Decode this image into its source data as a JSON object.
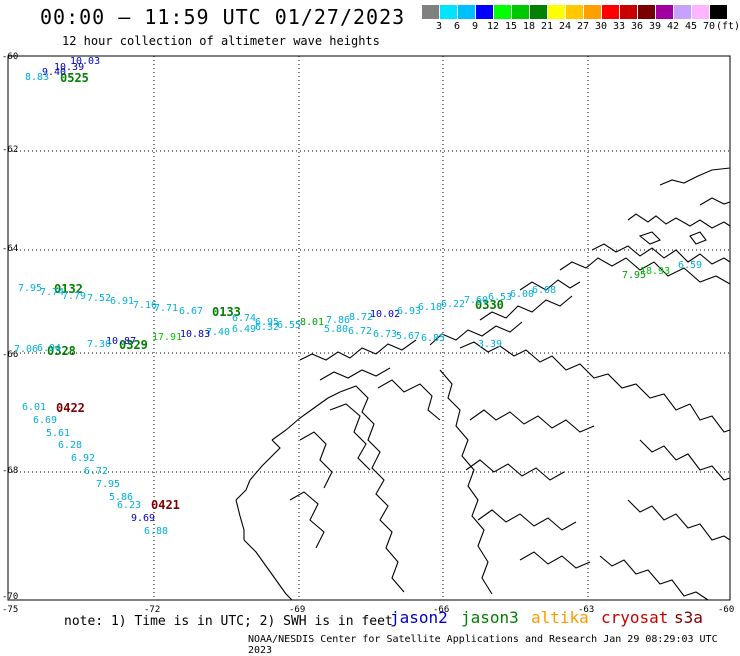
{
  "header": {
    "title": "00:00 – 11:59 UTC 01/27/2023",
    "subtitle": "12 hour collection of altimeter wave heights"
  },
  "color_scale": {
    "labels": [
      "3",
      "6",
      "9",
      "12",
      "15",
      "18",
      "21",
      "24",
      "27",
      "30",
      "33",
      "36",
      "39",
      "42",
      "45",
      "70"
    ],
    "colors": [
      "#808080",
      "#00e5ff",
      "#00bfff",
      "#0000ff",
      "#00ff00",
      "#00c800",
      "#008200",
      "#ffff00",
      "#ffc800",
      "#ffa000",
      "#ff0000",
      "#c80000",
      "#780000",
      "#a000a0",
      "#c8a0ff",
      "#ffb4ff",
      "#000000"
    ],
    "unit": "(ft)"
  },
  "axes": {
    "lat_labels": [
      "-60",
      "-62",
      "-64",
      "-66",
      "-68",
      "-70"
    ],
    "lon_labels": [
      "-75",
      "-72",
      "-69",
      "-66",
      "-63",
      "-60"
    ]
  },
  "time_labels": [
    {
      "text": "0525",
      "color": "#008000"
    },
    {
      "text": "0132",
      "color": "#008000"
    },
    {
      "text": "0133",
      "color": "#008000"
    },
    {
      "text": "0330",
      "color": "#008000"
    },
    {
      "text": "0328",
      "color": "#008000"
    },
    {
      "text": "0329",
      "color": "#008000"
    },
    {
      "text": "0422",
      "color": "#800000"
    },
    {
      "text": "0421",
      "color": "#800000"
    }
  ],
  "wave_values": [
    {
      "text": "10.03",
      "color": "#0000cc"
    },
    {
      "text": "10.39",
      "color": "#0000cc"
    },
    {
      "text": "9.40",
      "color": "#0000cc"
    },
    {
      "text": "8.83",
      "color": "#00b0e0"
    },
    {
      "text": "7.95",
      "color": "#00b0e0"
    },
    {
      "text": "7.74",
      "color": "#00b0e0"
    },
    {
      "text": "7.79",
      "color": "#00b0e0"
    },
    {
      "text": "7.52",
      "color": "#00b0e0"
    },
    {
      "text": "6.91",
      "color": "#00b0e0"
    },
    {
      "text": "7.16",
      "color": "#00b0e0"
    },
    {
      "text": "7.71",
      "color": "#00b0e0"
    },
    {
      "text": "6.67",
      "color": "#00b0e0"
    },
    {
      "text": "6.74",
      "color": "#00b0e0"
    },
    {
      "text": "6.95",
      "color": "#00b0e0"
    },
    {
      "text": "8.01",
      "color": "#00a000"
    },
    {
      "text": "7.86",
      "color": "#00b0e0"
    },
    {
      "text": "8.72",
      "color": "#00b0e0"
    },
    {
      "text": "10.02",
      "color": "#0000cc"
    },
    {
      "text": "6.93",
      "color": "#00b0e0"
    },
    {
      "text": "6.18",
      "color": "#00b0e0"
    },
    {
      "text": "6.22",
      "color": "#00b0e0"
    },
    {
      "text": "7.60",
      "color": "#00b0e0"
    },
    {
      "text": "6.53",
      "color": "#00b0e0"
    },
    {
      "text": "6.00",
      "color": "#00b0e0"
    },
    {
      "text": "6.08",
      "color": "#00b0e0"
    },
    {
      "text": "7.95",
      "color": "#00a000"
    },
    {
      "text": "18.93",
      "color": "#00c800"
    },
    {
      "text": "6.59",
      "color": "#00b0e0"
    },
    {
      "text": "6.49",
      "color": "#00b0e0"
    },
    {
      "text": "6.32",
      "color": "#00b0e0"
    },
    {
      "text": "6.55",
      "color": "#00b0e0"
    },
    {
      "text": "5.80",
      "color": "#00b0e0"
    },
    {
      "text": "6.72",
      "color": "#00b0e0"
    },
    {
      "text": "6.73",
      "color": "#00b0e0"
    },
    {
      "text": "5.67",
      "color": "#00b0e0"
    },
    {
      "text": "6.85",
      "color": "#00b0e0"
    },
    {
      "text": "3.39",
      "color": "#00b0e0"
    },
    {
      "text": "7.40",
      "color": "#00b0e0"
    },
    {
      "text": "10.83",
      "color": "#0000cc"
    },
    {
      "text": "17.91",
      "color": "#00c800"
    },
    {
      "text": "10.87",
      "color": "#0000cc"
    },
    {
      "text": "7.30",
      "color": "#00b0e0"
    },
    {
      "text": "7.06",
      "color": "#00b0e0"
    },
    {
      "text": "6.94",
      "color": "#00b0e0"
    },
    {
      "text": "6.01",
      "color": "#00b0e0"
    },
    {
      "text": "6.69",
      "color": "#00b0e0"
    },
    {
      "text": "5.61",
      "color": "#00b0e0"
    },
    {
      "text": "6.28",
      "color": "#00b0e0"
    },
    {
      "text": "6.92",
      "color": "#00b0e0"
    },
    {
      "text": "6.72",
      "color": "#00b0e0"
    },
    {
      "text": "7.95",
      "color": "#00b0e0"
    },
    {
      "text": "5.86",
      "color": "#00b0e0"
    },
    {
      "text": "6.23",
      "color": "#00b0e0"
    },
    {
      "text": "9.69",
      "color": "#0000cc"
    },
    {
      "text": "6.88",
      "color": "#00b0e0"
    }
  ],
  "footer": {
    "note": "note: 1) Time is in UTC; 2) SWH is in feet",
    "satellites": [
      {
        "name": "jason2",
        "color": "#0000cc"
      },
      {
        "name": "jason3",
        "color": "#008000"
      },
      {
        "name": "altika",
        "color": "#ff9900"
      },
      {
        "name": "cryosat",
        "color": "#cc0000"
      },
      {
        "name": "s3a",
        "color": "#800000"
      }
    ],
    "credit": "NOAA/NESDIS Center for Satellite Applications and Research    Jan 29 08:29:03 UTC 2023"
  }
}
